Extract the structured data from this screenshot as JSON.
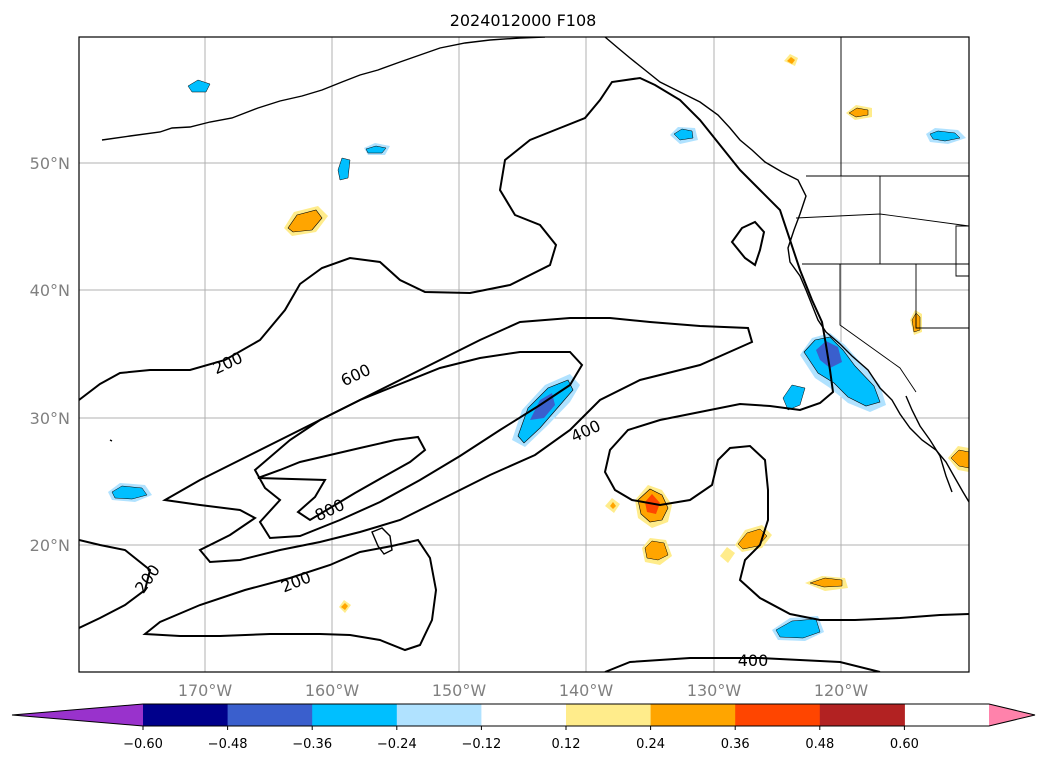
{
  "title": "2024012000 F108",
  "lat_labels": [
    "50°N",
    "40°N",
    "30°N",
    "20°N"
  ],
  "lon_labels": [
    "170°W",
    "160°W",
    "150°W",
    "140°W",
    "130°W",
    "120°W"
  ],
  "colorbar": {
    "ticks": [
      "−0.60",
      "−0.48",
      "−0.36",
      "−0.24",
      "−0.12",
      "0.12",
      "0.24",
      "0.36",
      "0.48",
      "0.60"
    ],
    "colors": [
      "#9932cc",
      "#00008b",
      "#3a5fcd",
      "#00bfff",
      "#b0e2ff",
      "#ffffff",
      "#ffec8b",
      "#ffa500",
      "#ff4500",
      "#b22222",
      "#ff82ab"
    ]
  },
  "contour_labels": [
    "200",
    "600",
    "800",
    "400",
    "200",
    "200",
    "400"
  ],
  "colors": {
    "grid": "#b0b0b0",
    "axis_labels": "#808080"
  }
}
